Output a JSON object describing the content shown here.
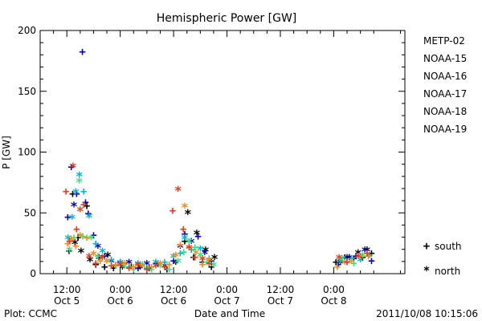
{
  "footer": {
    "credit": "Plot: CCMC",
    "timestamp": "2011/10/08 10:15:06"
  },
  "chart_data": {
    "type": "scatter",
    "title": "Hemispheric Power [GW]",
    "xlabel": "Date and Time",
    "ylabel": "P [GW]",
    "x_unit": "hours since Oct 5 00:00",
    "xlim": [
      6,
      88
    ],
    "ylim": [
      0,
      200
    ],
    "y_ticks": [
      "0",
      "50",
      "100",
      "150",
      "200"
    ],
    "x_ticks": [
      {
        "x": 12,
        "time": "12:00",
        "date": "Oct 5"
      },
      {
        "x": 24,
        "time": "0:00",
        "date": "Oct 6"
      },
      {
        "x": 36,
        "time": "12:00",
        "date": "Oct 6"
      },
      {
        "x": 48,
        "time": "0:00",
        "date": "Oct 7"
      },
      {
        "x": 60,
        "time": "12:00",
        "date": "Oct 7"
      },
      {
        "x": 72,
        "time": "0:00",
        "date": "Oct 8"
      }
    ],
    "legend_position": "right",
    "hemisphere_legend": [
      {
        "symbol": "+",
        "label": "south"
      },
      {
        "symbol": "*",
        "label": "north"
      }
    ],
    "series": [
      {
        "name": "METP-02",
        "color": "#000000",
        "points": [
          [
            12.5,
            19,
            "+"
          ],
          [
            13.3,
            66,
            "+"
          ],
          [
            13.8,
            24,
            "*"
          ],
          [
            14.5,
            30,
            "+"
          ],
          [
            15.2,
            17,
            "*"
          ],
          [
            16.5,
            56,
            "+"
          ],
          [
            17.2,
            10,
            "*"
          ],
          [
            18.5,
            8,
            "+"
          ],
          [
            19.2,
            12,
            "*"
          ],
          [
            20.5,
            6,
            "+"
          ],
          [
            21.2,
            14,
            "*"
          ],
          [
            22.5,
            5,
            "+"
          ],
          [
            24.5,
            4,
            "*"
          ],
          [
            26.5,
            6,
            "+"
          ],
          [
            28.5,
            4,
            "*"
          ],
          [
            30.5,
            5,
            "+"
          ],
          [
            32.5,
            6,
            "*"
          ],
          [
            34.5,
            4,
            "+"
          ],
          [
            36.5,
            8,
            "*"
          ],
          [
            38.5,
            27,
            "+"
          ],
          [
            39.2,
            49,
            "*"
          ],
          [
            40.5,
            14,
            "+"
          ],
          [
            41.2,
            32,
            "*"
          ],
          [
            42.5,
            10,
            "+"
          ],
          [
            43.2,
            18,
            "*"
          ],
          [
            44.5,
            6,
            "+"
          ],
          [
            45.2,
            12,
            "*"
          ],
          [
            72.5,
            10,
            "+"
          ],
          [
            73.5,
            8,
            "*"
          ],
          [
            74.5,
            14,
            "+"
          ],
          [
            75.5,
            12,
            "*"
          ],
          [
            76.5,
            13,
            "+"
          ],
          [
            77.5,
            16,
            "*"
          ],
          [
            78.5,
            14,
            "+"
          ],
          [
            79.5,
            18,
            "*"
          ],
          [
            80.5,
            17,
            "+"
          ]
        ]
      },
      {
        "name": "NOAA-15",
        "color": "#0000c8",
        "points": [
          [
            12.2,
            47,
            "+"
          ],
          [
            13.0,
            88,
            "+"
          ],
          [
            13.6,
            55,
            "*"
          ],
          [
            14.2,
            66,
            "+"
          ],
          [
            15.5,
            183,
            "+"
          ],
          [
            16.2,
            59,
            "+"
          ],
          [
            16.8,
            50,
            "+"
          ],
          [
            18.0,
            32,
            "+"
          ],
          [
            19.0,
            21,
            "*"
          ],
          [
            20.5,
            15,
            "+"
          ],
          [
            22.0,
            9,
            "*"
          ],
          [
            24.0,
            10,
            "+"
          ],
          [
            26.0,
            8,
            "*"
          ],
          [
            28.0,
            5,
            "+"
          ],
          [
            30.0,
            7,
            "*"
          ],
          [
            32.0,
            9,
            "+"
          ],
          [
            34.0,
            5,
            "*"
          ],
          [
            36.0,
            11,
            "+"
          ],
          [
            37.5,
            21,
            "*"
          ],
          [
            38.5,
            33,
            "+"
          ],
          [
            40.0,
            25,
            "*"
          ],
          [
            41.5,
            31,
            "+"
          ],
          [
            43.0,
            16,
            "*"
          ],
          [
            44.5,
            11,
            "+"
          ],
          [
            73.0,
            8,
            "+"
          ],
          [
            75.0,
            12,
            "*"
          ],
          [
            77.0,
            15,
            "+"
          ],
          [
            79.0,
            18,
            "*"
          ],
          [
            80.5,
            11,
            "+"
          ]
        ]
      },
      {
        "name": "NOAA-16",
        "color": "#00b4d2",
        "points": [
          [
            12.3,
            28,
            "*"
          ],
          [
            13.2,
            45,
            "*"
          ],
          [
            14.0,
            66,
            "*"
          ],
          [
            14.8,
            80,
            "*"
          ],
          [
            15.8,
            68,
            "+"
          ],
          [
            17.0,
            46,
            "*"
          ],
          [
            18.5,
            25,
            "+"
          ],
          [
            20.0,
            17,
            "*"
          ],
          [
            22.0,
            12,
            "+"
          ],
          [
            24.0,
            8,
            "*"
          ],
          [
            26.0,
            6,
            "+"
          ],
          [
            28.0,
            7,
            "*"
          ],
          [
            30.0,
            5,
            "+"
          ],
          [
            32.0,
            8,
            "*"
          ],
          [
            34.0,
            10,
            "+"
          ],
          [
            36.0,
            13,
            "*"
          ],
          [
            37.5,
            17,
            "+"
          ],
          [
            38.5,
            28,
            "*"
          ],
          [
            40.0,
            20,
            "+"
          ],
          [
            42.0,
            19,
            "*"
          ],
          [
            44.0,
            13,
            "+"
          ],
          [
            73.5,
            9,
            "*"
          ],
          [
            76.0,
            13,
            "+"
          ],
          [
            78.0,
            10,
            "*"
          ],
          [
            80.0,
            16,
            "+"
          ]
        ]
      },
      {
        "name": "NOAA-17",
        "color": "#32e682",
        "points": [
          [
            12.6,
            18,
            "*"
          ],
          [
            13.6,
            30,
            "+"
          ],
          [
            14.8,
            75,
            "*"
          ],
          [
            15.6,
            31,
            "+"
          ],
          [
            17.5,
            28,
            "*"
          ],
          [
            19.0,
            15,
            "+"
          ],
          [
            21.0,
            9,
            "*"
          ],
          [
            23.0,
            7,
            "+"
          ],
          [
            25.0,
            5,
            "*"
          ],
          [
            27.0,
            4,
            "+"
          ],
          [
            29.0,
            6,
            "*"
          ],
          [
            31.0,
            4,
            "+"
          ],
          [
            33.0,
            5,
            "*"
          ],
          [
            35.0,
            4,
            "+"
          ],
          [
            37.0,
            9,
            "*"
          ],
          [
            38.3,
            18,
            "+"
          ],
          [
            39.5,
            25,
            "*"
          ],
          [
            40.8,
            22,
            "+"
          ],
          [
            42.0,
            14,
            "*"
          ],
          [
            43.5,
            10,
            "+"
          ],
          [
            45.0,
            6,
            "*"
          ],
          [
            74.0,
            11,
            "*"
          ],
          [
            76.5,
            9,
            "+"
          ],
          [
            78.5,
            14,
            "*"
          ]
        ]
      },
      {
        "name": "NOAA-18",
        "color": "#f08c14",
        "points": [
          [
            12.2,
            25,
            "+"
          ],
          [
            13.0,
            27,
            "*"
          ],
          [
            14.0,
            23,
            "+"
          ],
          [
            15.0,
            30,
            "*"
          ],
          [
            16.5,
            30,
            "+"
          ],
          [
            18.0,
            15,
            "*"
          ],
          [
            19.5,
            11,
            "+"
          ],
          [
            21.0,
            9,
            "*"
          ],
          [
            23.0,
            8,
            "+"
          ],
          [
            25.0,
            7,
            "*"
          ],
          [
            27.0,
            6,
            "+"
          ],
          [
            29.0,
            5,
            "*"
          ],
          [
            31.0,
            6,
            "+"
          ],
          [
            33.0,
            7,
            "*"
          ],
          [
            35.0,
            8,
            "+"
          ],
          [
            36.5,
            14,
            "*"
          ],
          [
            37.5,
            24,
            "+"
          ],
          [
            38.5,
            54,
            "*"
          ],
          [
            39.5,
            22,
            "+"
          ],
          [
            41.0,
            16,
            "*"
          ],
          [
            42.5,
            8,
            "+"
          ],
          [
            44.0,
            10,
            "*"
          ],
          [
            72.8,
            6,
            "+"
          ],
          [
            74.5,
            8,
            "*"
          ],
          [
            76.0,
            11,
            "+"
          ],
          [
            78.0,
            13,
            "*"
          ],
          [
            79.8,
            15,
            "+"
          ]
        ]
      },
      {
        "name": "NOAA-19",
        "color": "#e63c14",
        "points": [
          [
            11.8,
            68,
            "+"
          ],
          [
            12.6,
            27,
            "+"
          ],
          [
            13.4,
            87,
            "*"
          ],
          [
            14.2,
            37,
            "+"
          ],
          [
            15.0,
            51,
            "*"
          ],
          [
            15.8,
            57,
            "+"
          ],
          [
            17.0,
            13,
            "*"
          ],
          [
            18.5,
            9,
            "+"
          ],
          [
            20.0,
            12,
            "*"
          ],
          [
            22.0,
            7,
            "+"
          ],
          [
            24.0,
            6,
            "*"
          ],
          [
            26.0,
            5,
            "+"
          ],
          [
            28.0,
            6,
            "*"
          ],
          [
            30.0,
            4,
            "+"
          ],
          [
            32.0,
            5,
            "*"
          ],
          [
            34.0,
            6,
            "+"
          ],
          [
            35.8,
            52,
            "+"
          ],
          [
            37.0,
            68,
            "*"
          ],
          [
            38.2,
            37,
            "+"
          ],
          [
            39.5,
            20,
            "*"
          ],
          [
            40.8,
            14,
            "+"
          ],
          [
            42.5,
            11,
            "*"
          ],
          [
            44.0,
            9,
            "+"
          ],
          [
            73.2,
            12,
            "*"
          ],
          [
            75.0,
            10,
            "+"
          ],
          [
            77.5,
            13,
            "*"
          ],
          [
            79.5,
            17,
            "+"
          ]
        ]
      }
    ]
  }
}
